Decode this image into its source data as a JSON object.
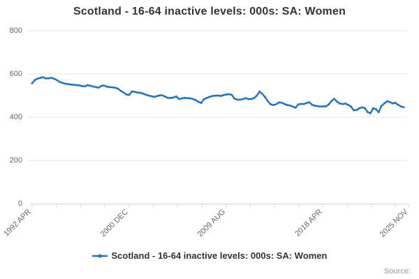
{
  "title": "Scotland - 16-64 inactive levels: 000s: SA: Women",
  "legend": {
    "label": "Scotland - 16-64 inactive levels: 000s: SA: Women"
  },
  "source_label": "Source:",
  "colors": {
    "series": "#2073bc",
    "grid": "#e6e6e6",
    "axis": "#ccd6eb",
    "tick_label": "#666666",
    "title": "#333333",
    "source": "#999999",
    "background": "#ffffff"
  },
  "chart_data": {
    "type": "line",
    "title": "Scotland - 16-64 inactive levels: 000s: SA: Women",
    "series_name": "Scotland - 16-64 inactive levels: 000s: SA: Women",
    "xlabel": "",
    "ylabel": "",
    "ylim": [
      0,
      800
    ],
    "y_ticks": [
      0,
      200,
      400,
      600,
      800
    ],
    "y_tick_labels": [
      "0",
      "200",
      "400",
      "600",
      "800"
    ],
    "x_tick_labels": [
      "1992 APR",
      "2000 DEC",
      "2009 AUG",
      "2018 APR",
      "2025 NOV"
    ],
    "x_start": "1992 APR",
    "x_end": "2025 NOV",
    "sampling": "quarterly estimates read from plot",
    "grid": "horizontal",
    "legend_position": "bottom-center",
    "marker": "small-circle",
    "values": [
      557,
      572,
      578,
      582,
      585,
      579,
      580,
      582,
      577,
      571,
      563,
      558,
      555,
      553,
      551,
      550,
      548,
      547,
      544,
      543,
      548,
      545,
      542,
      539,
      536,
      545,
      546,
      541,
      539,
      538,
      536,
      531,
      522,
      514,
      505,
      503,
      519,
      517,
      514,
      513,
      509,
      504,
      500,
      497,
      494,
      497,
      501,
      501,
      495,
      489,
      489,
      491,
      496,
      484,
      487,
      489,
      488,
      487,
      484,
      479,
      471,
      466,
      483,
      489,
      494,
      498,
      499,
      500,
      498,
      502,
      505,
      506,
      503,
      486,
      481,
      481,
      484,
      488,
      484,
      484,
      488,
      499,
      518,
      508,
      494,
      474,
      460,
      456,
      460,
      468,
      467,
      461,
      456,
      454,
      449,
      444,
      459,
      461,
      461,
      465,
      469,
      457,
      453,
      451,
      449,
      450,
      450,
      459,
      475,
      485,
      472,
      463,
      461,
      463,
      457,
      449,
      432,
      433,
      441,
      445,
      442,
      424,
      418,
      441,
      437,
      423,
      452,
      463,
      474,
      470,
      464,
      466,
      457,
      450,
      446
    ]
  }
}
